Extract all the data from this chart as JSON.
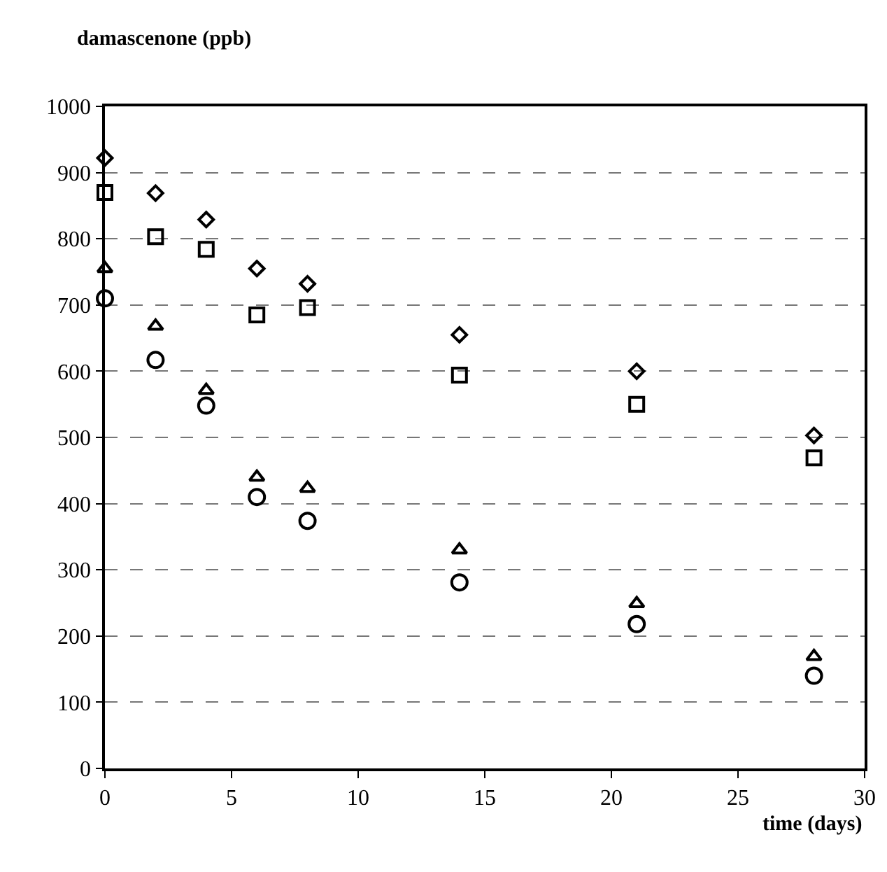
{
  "chart_data": {
    "type": "scatter",
    "ylabel": "damascenone (ppb)",
    "xlabel": "time (days)",
    "x": [
      0,
      2,
      4,
      6,
      8,
      14,
      21,
      28
    ],
    "series": [
      {
        "color": "#000000",
        "marker": "diamond",
        "values": [
          922,
          869,
          829,
          755,
          732,
          655,
          600,
          503
        ]
      },
      {
        "color": "#000000",
        "marker": "square",
        "values": [
          870,
          803,
          784,
          685,
          696,
          594,
          550,
          469
        ]
      },
      {
        "color": "#000000",
        "marker": "triangle",
        "values": [
          755,
          668,
          571,
          440,
          423,
          330,
          249,
          169
        ]
      },
      {
        "color": "#000000",
        "marker": "circle",
        "values": [
          710,
          617,
          548,
          410,
          374,
          281,
          218,
          140
        ]
      }
    ],
    "xlim": [
      0,
      30
    ],
    "xticks": [
      0,
      5,
      10,
      15,
      20,
      25,
      30
    ],
    "ylim": [
      0,
      1000
    ],
    "yticks": [
      0,
      100,
      200,
      300,
      400,
      500,
      600,
      700,
      800,
      900,
      1000
    ],
    "grid": "y"
  }
}
